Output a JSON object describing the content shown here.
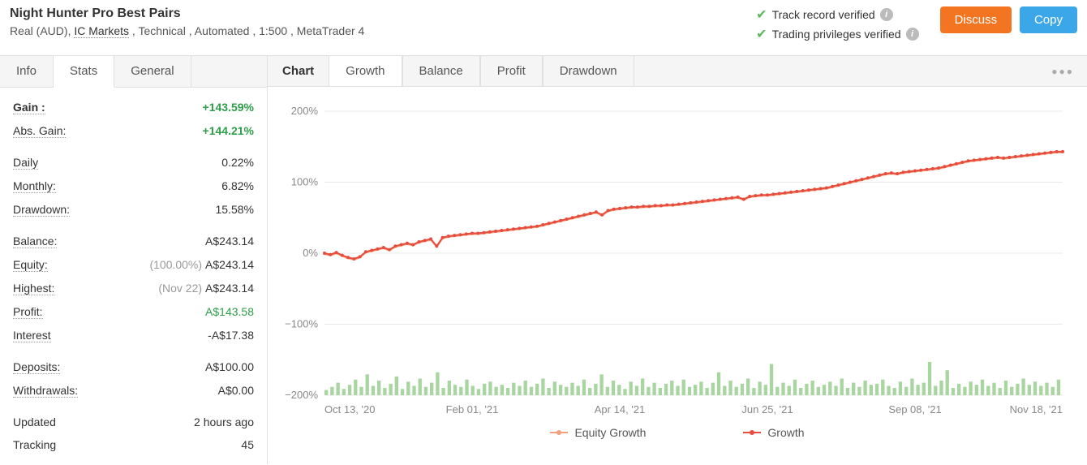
{
  "header": {
    "title": "Night Hunter Pro Best Pairs",
    "subtitle_prefix": "Real (AUD), ",
    "broker": "IC Markets",
    "subtitle_suffix": " , Technical , Automated , 1:500 , MetaTrader 4",
    "verified1": "Track record verified",
    "verified2": "Trading privileges verified",
    "discuss": "Discuss",
    "copy": "Copy"
  },
  "sidebar": {
    "tabs": [
      "Info",
      "Stats",
      "General"
    ],
    "active_tab": 1,
    "groups": [
      [
        {
          "label": "Gain :",
          "value": "+143.59%",
          "bold": true,
          "green": true
        },
        {
          "label": "Abs. Gain:",
          "value": "+144.21%",
          "green": true
        }
      ],
      [
        {
          "label": "Daily",
          "value": "0.22%"
        },
        {
          "label": "Monthly:",
          "value": "6.82%"
        },
        {
          "label": "Drawdown:",
          "value": "15.58%"
        }
      ],
      [
        {
          "label": "Balance:",
          "value": "A$243.14"
        },
        {
          "label": "Equity:",
          "note": "(100.00%)",
          "value": "A$243.14"
        },
        {
          "label": "Highest:",
          "note": "(Nov 22)",
          "value": "A$243.14"
        },
        {
          "label": "Profit:",
          "value": "A$143.58",
          "green_plain": true
        },
        {
          "label": "Interest",
          "value": "-A$17.38"
        }
      ],
      [
        {
          "label": "Deposits:",
          "value": "A$100.00"
        },
        {
          "label": "Withdrawals:",
          "value": "A$0.00"
        }
      ],
      [
        {
          "label": "Updated",
          "value": "2 hours ago",
          "plain": true
        },
        {
          "label": "Tracking",
          "value": "45",
          "plain": true
        }
      ]
    ]
  },
  "chart": {
    "label": "Chart",
    "tabs": [
      "Growth",
      "Balance",
      "Profit",
      "Drawdown"
    ],
    "active_tab": 0,
    "legend": {
      "equity": "Equity Growth",
      "growth": "Growth"
    },
    "y_axis": {
      "min": -200,
      "max": 200,
      "step": 100,
      "suffix": "%"
    },
    "x_labels": [
      "Oct 13, '20",
      "Feb 01, '21",
      "Apr 14, '21",
      "Jun 25, '21",
      "Sep 08, '21",
      "Nov 18, '21"
    ],
    "colors": {
      "growth_line": "#e74c3c",
      "equity_line": "#f2a07b",
      "bars": "#a8d5a0",
      "grid": "#e8e8e8",
      "axis_text": "#888",
      "background": "#ffffff"
    },
    "growth_series": [
      0,
      -2,
      1,
      -3,
      -6,
      -8,
      -5,
      2,
      4,
      6,
      8,
      5,
      10,
      12,
      14,
      12,
      16,
      18,
      20,
      10,
      22,
      24,
      25,
      26,
      27,
      28,
      28,
      29,
      30,
      31,
      32,
      33,
      34,
      35,
      36,
      37,
      38,
      40,
      42,
      44,
      46,
      48,
      50,
      52,
      54,
      56,
      58,
      54,
      60,
      62,
      63,
      64,
      65,
      65,
      66,
      66,
      67,
      67,
      68,
      68,
      69,
      70,
      71,
      72,
      73,
      74,
      75,
      76,
      77,
      78,
      79,
      76,
      80,
      81,
      82,
      82,
      83,
      84,
      85,
      86,
      87,
      88,
      89,
      90,
      91,
      92,
      94,
      96,
      98,
      100,
      102,
      104,
      106,
      108,
      110,
      112,
      113,
      112,
      114,
      115,
      116,
      117,
      118,
      119,
      120,
      122,
      124,
      126,
      128,
      130,
      131,
      132,
      133,
      134,
      135,
      134,
      135,
      136,
      137,
      138,
      139,
      140,
      141,
      142,
      143,
      143
    ],
    "bar_series": [
      5,
      8,
      12,
      6,
      10,
      15,
      8,
      20,
      9,
      14,
      7,
      11,
      18,
      6,
      13,
      9,
      16,
      8,
      12,
      22,
      7,
      14,
      10,
      8,
      15,
      9,
      6,
      11,
      13,
      8,
      10,
      7,
      12,
      9,
      14,
      8,
      11,
      16,
      7,
      13,
      10,
      8,
      12,
      9,
      15,
      7,
      11,
      20,
      8,
      14,
      10,
      6,
      13,
      9,
      16,
      8,
      12,
      7,
      11,
      14,
      9,
      15,
      8,
      10,
      13,
      7,
      12,
      22,
      9,
      14,
      8,
      11,
      16,
      7,
      13,
      10,
      30,
      8,
      12,
      9,
      15,
      7,
      11,
      14,
      8,
      10,
      13,
      9,
      16,
      7,
      12,
      8,
      14,
      10,
      11,
      15,
      9,
      7,
      13,
      8,
      16,
      10,
      12,
      32,
      9,
      14,
      24,
      7,
      11,
      8,
      13,
      10,
      15,
      9,
      12,
      7,
      14,
      8,
      11,
      16,
      10,
      13,
      9,
      12,
      8,
      15
    ]
  }
}
